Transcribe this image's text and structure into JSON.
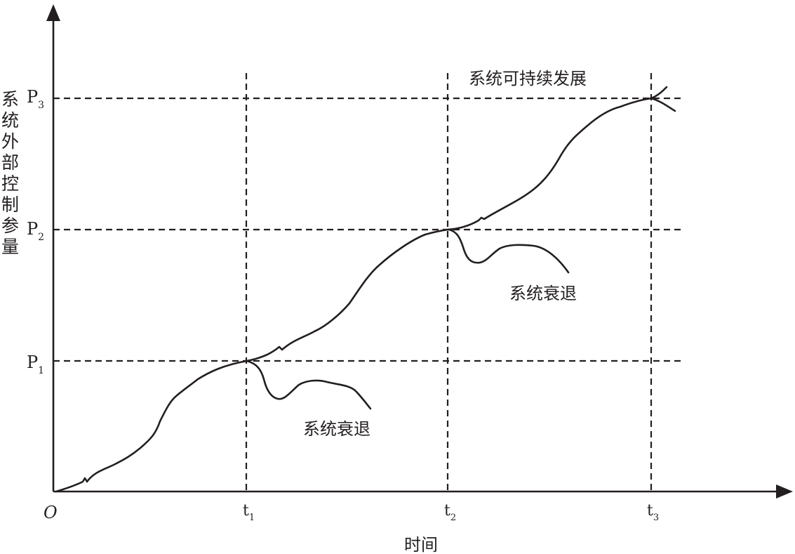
{
  "y_axis_title": "系统外部控制参量",
  "x_axis_title": "时间",
  "origin_label": "O",
  "y_levels": [
    {
      "base": "P",
      "sub": "1"
    },
    {
      "base": "P",
      "sub": "2"
    },
    {
      "base": "P",
      "sub": "3"
    }
  ],
  "x_marks": [
    {
      "base": "t",
      "sub": "1"
    },
    {
      "base": "t",
      "sub": "2"
    },
    {
      "base": "t",
      "sub": "3"
    }
  ],
  "annotations": {
    "sustainable": "系统可持续发展",
    "decline_1": "系统衰退",
    "decline_2": "系统衰退"
  }
}
